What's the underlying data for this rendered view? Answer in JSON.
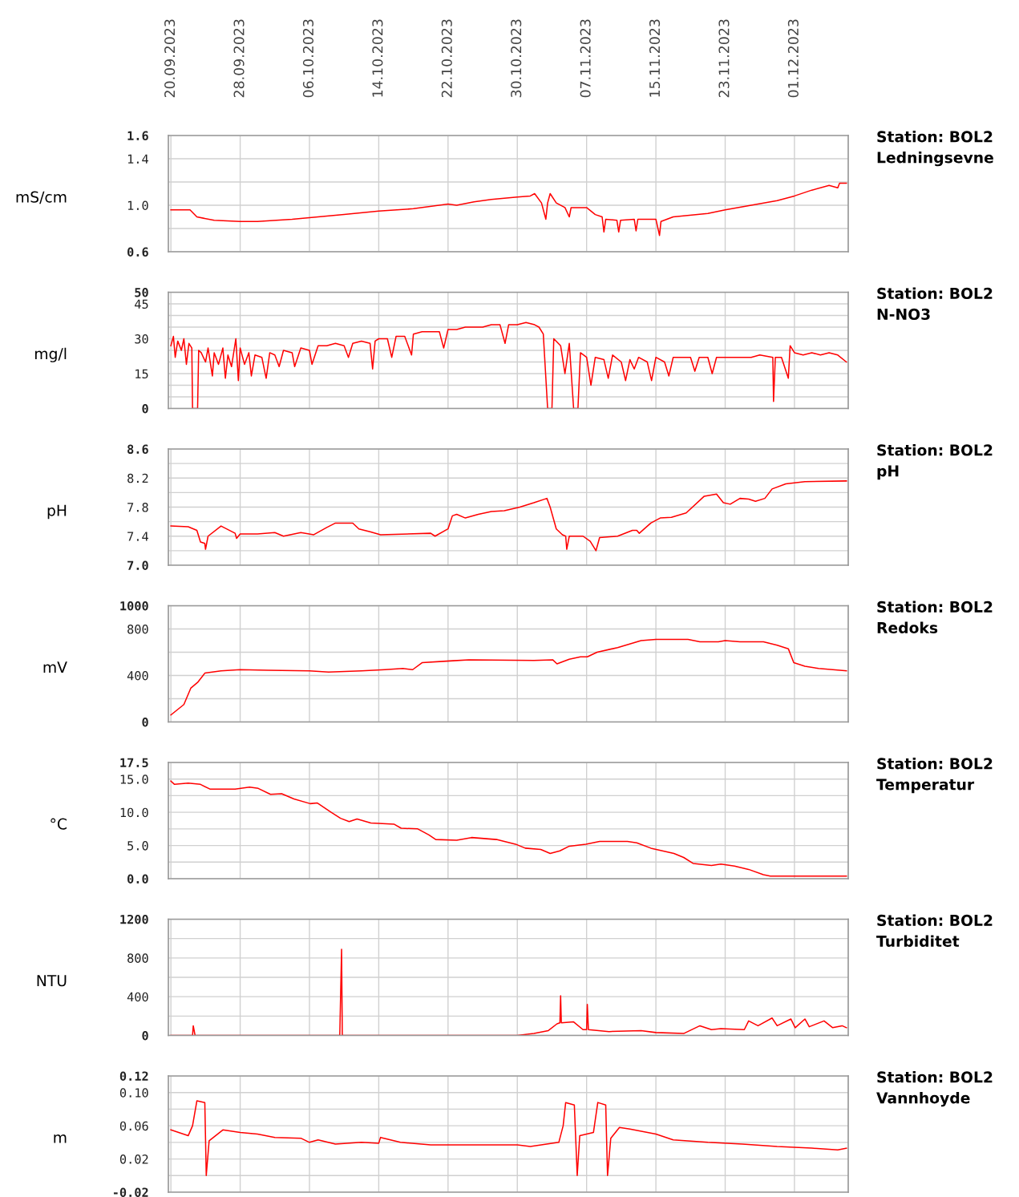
{
  "chart_data": [
    {
      "type": "line",
      "annotations": [
        "Station: BOL2",
        "Ledningsevne"
      ],
      "ylabel": "mS/cm",
      "grid": true,
      "x": [
        "2023-09-20",
        "2023-09-22T05:00",
        "2023-09-23",
        "2023-09-25",
        "2023-09-28",
        "2023-09-30",
        "2023-10-04",
        "2023-10-07",
        "2023-10-10",
        "2023-10-14",
        "2023-10-18",
        "2023-10-22",
        "2023-10-23",
        "2023-10-25",
        "2023-10-27",
        "2023-10-30",
        "2023-10-31T12:00",
        "2023-11-01",
        "2023-11-01T19:00",
        "2023-11-02T07:00",
        "2023-11-02T12:00",
        "2023-11-02T19:00",
        "2023-11-03T12:00",
        "2023-11-04T12:00",
        "2023-11-05",
        "2023-11-05T05:00",
        "2023-11-07",
        "2023-11-08",
        "2023-11-08T19:00",
        "2023-11-09",
        "2023-11-09T05:00",
        "2023-11-10T12:00",
        "2023-11-10T17:00",
        "2023-11-10T22:00",
        "2023-11-12T12:00",
        "2023-11-12T17:00",
        "2023-11-12T22:00",
        "2023-11-15",
        "2023-11-15T10:00",
        "2023-11-15T14:00",
        "2023-11-17",
        "2023-11-21",
        "2023-11-23",
        "2023-11-26",
        "2023-11-29",
        "2023-12-01",
        "2023-12-03",
        "2023-12-05",
        "2023-12-06",
        "2023-12-06T05:00",
        "2023-12-07"
      ],
      "series": [
        {
          "color": "#ff0000",
          "values": [
            0.96,
            0.96,
            0.9,
            0.87,
            0.86,
            0.86,
            0.88,
            0.9,
            0.92,
            0.95,
            0.97,
            1.01,
            1.0,
            1.03,
            1.05,
            1.07,
            1.08,
            1.1,
            1.02,
            0.88,
            1.02,
            1.1,
            1.02,
            0.98,
            0.9,
            0.98,
            0.98,
            0.92,
            0.9,
            0.77,
            0.88,
            0.87,
            0.77,
            0.87,
            0.88,
            0.78,
            0.88,
            0.88,
            0.74,
            0.86,
            0.9,
            0.93,
            0.96,
            1.0,
            1.04,
            1.08,
            1.13,
            1.17,
            1.15,
            1.19,
            1.19
          ]
        }
      ],
      "xlim": [
        "2023-09-19T17:00",
        "2023-12-07T05:00"
      ],
      "xticks": [
        {
          "value": "2023-09-20",
          "label": "20.09.2023"
        },
        {
          "value": "2023-09-28",
          "label": "28.09.2023"
        },
        {
          "value": "2023-10-06",
          "label": "06.10.2023"
        },
        {
          "value": "2023-10-14",
          "label": "14.10.2023"
        },
        {
          "value": "2023-10-22",
          "label": "22.10.2023"
        },
        {
          "value": "2023-10-30",
          "label": "30.10.2023"
        },
        {
          "value": "2023-11-07",
          "label": "07.11.2023"
        },
        {
          "value": "2023-11-15",
          "label": "15.11.2023"
        },
        {
          "value": "2023-11-23",
          "label": "23.11.2023"
        },
        {
          "value": "2023-12-01",
          "label": "01.12.2023"
        }
      ],
      "ylim": [
        0.6,
        1.6
      ],
      "yticks": [
        {
          "value": 0.6,
          "label": "0.6"
        },
        {
          "value": 0.8,
          "label": null
        },
        {
          "value": 1.0,
          "label": "1.0"
        },
        {
          "value": 1.2,
          "label": null
        },
        {
          "value": 1.4,
          "label": "1.4"
        },
        {
          "value": 1.6,
          "label": "1.6"
        }
      ]
    },
    {
      "type": "line",
      "annotations": [
        "Station: BOL2",
        "N-NO3"
      ],
      "ylabel": "mg/l",
      "grid": true,
      "tick_labels": "y",
      "x": [
        "2023-09-20",
        "2023-09-20T07:00",
        "2023-09-20T12:00",
        "2023-09-20T19:00",
        "2023-09-21T05:00",
        "2023-09-21T12:00",
        "2023-09-21T19:00",
        "2023-09-22T02:00",
        "2023-09-22T10:00",
        "2023-09-22T12:00",
        "2023-09-23T02:00",
        "2023-09-23T05:00",
        "2023-09-23T12:00",
        "2023-09-24",
        "2023-09-24T07:00",
        "2023-09-24T19:00",
        "2023-09-25",
        "2023-09-25T12:00",
        "2023-09-26",
        "2023-09-26T07:00",
        "2023-09-26T14:00",
        "2023-09-27",
        "2023-09-27T12:00",
        "2023-09-27T19:00",
        "2023-09-28",
        "2023-09-28T12:00",
        "2023-09-29",
        "2023-09-29T07:00",
        "2023-09-29T17:00",
        "2023-09-30T12:00",
        "2023-10-01",
        "2023-10-01T10:00",
        "2023-10-02",
        "2023-10-02T12:00",
        "2023-10-03",
        "2023-10-04",
        "2023-10-04T07:00",
        "2023-10-05",
        "2023-10-06",
        "2023-10-06T07:00",
        "2023-10-07",
        "2023-10-08",
        "2023-10-09",
        "2023-10-10",
        "2023-10-10T12:00",
        "2023-10-11",
        "2023-10-12",
        "2023-10-13",
        "2023-10-13T07:00",
        "2023-10-13T14:00",
        "2023-10-14",
        "2023-10-15",
        "2023-10-15T12:00",
        "2023-10-16",
        "2023-10-17",
        "2023-10-17T19:00",
        "2023-10-18",
        "2023-10-19",
        "2023-10-20",
        "2023-10-21",
        "2023-10-21T12:00",
        "2023-10-22",
        "2023-10-23",
        "2023-10-24",
        "2023-10-25",
        "2023-10-26",
        "2023-10-27",
        "2023-10-28",
        "2023-10-28T14:00",
        "2023-10-29",
        "2023-10-30",
        "2023-10-31",
        "2023-11-01",
        "2023-11-01T12:00",
        "2023-11-02",
        "2023-11-02T12:00",
        "2023-11-03",
        "2023-11-03T05:00",
        "2023-11-04",
        "2023-11-04T12:00",
        "2023-11-05",
        "2023-11-05T12:00",
        "2023-11-06",
        "2023-11-06T07:00",
        "2023-11-07",
        "2023-11-07T12:00",
        "2023-11-08",
        "2023-11-09",
        "2023-11-09T12:00",
        "2023-11-10",
        "2023-11-11",
        "2023-11-11T12:00",
        "2023-11-12",
        "2023-11-12T12:00",
        "2023-11-13",
        "2023-11-14",
        "2023-11-14T12:00",
        "2023-11-15",
        "2023-11-16",
        "2023-11-16T12:00",
        "2023-11-17",
        "2023-11-18",
        "2023-11-19",
        "2023-11-19T12:00",
        "2023-11-20",
        "2023-11-21",
        "2023-11-21T12:00",
        "2023-11-22",
        "2023-11-23",
        "2023-11-24",
        "2023-11-25",
        "2023-11-26",
        "2023-11-27",
        "2023-11-28T12:00",
        "2023-11-28T14:00",
        "2023-11-28T19:00",
        "2023-11-29T12:00",
        "2023-11-30T07:00",
        "2023-11-30T12:00",
        "2023-12-01",
        "2023-12-02",
        "2023-12-03",
        "2023-12-04",
        "2023-12-05",
        "2023-12-06",
        "2023-12-07"
      ],
      "series": [
        {
          "color": "#ff0000",
          "values": [
            27,
            31,
            22,
            29,
            25,
            30,
            19,
            28,
            26,
            0,
            0,
            25,
            24,
            20,
            26,
            14,
            24,
            19,
            26,
            13,
            23,
            18,
            30,
            12,
            26,
            19,
            24,
            14,
            23,
            22,
            13,
            24,
            23,
            18,
            25,
            24,
            18,
            26,
            25,
            19,
            27,
            27,
            28,
            27,
            22,
            28,
            29,
            28,
            17,
            29,
            30,
            30,
            22,
            31,
            31,
            23,
            32,
            33,
            33,
            33,
            26,
            34,
            34,
            35,
            35,
            35,
            36,
            36,
            28,
            36,
            36,
            37,
            36,
            35,
            32,
            0,
            0,
            30,
            27,
            15,
            28,
            0,
            0,
            24,
            22,
            10,
            22,
            21,
            13,
            23,
            20,
            12,
            21,
            17,
            22,
            20,
            12,
            22,
            20,
            14,
            22,
            22,
            22,
            16,
            22,
            22,
            15,
            22,
            22,
            22,
            22,
            22,
            23,
            22,
            3,
            22,
            22,
            13,
            27,
            24,
            23,
            24,
            23,
            24,
            23,
            20
          ]
        }
      ],
      "xlim": [
        "2023-09-19T17:00",
        "2023-12-07T05:00"
      ],
      "xticks": [
        {
          "value": "2023-09-20",
          "label": null
        },
        {
          "value": "2023-09-28",
          "label": null
        },
        {
          "value": "2023-10-06",
          "label": null
        },
        {
          "value": "2023-10-14",
          "label": null
        },
        {
          "value": "2023-10-22",
          "label": null
        },
        {
          "value": "2023-10-30",
          "label": null
        },
        {
          "value": "2023-11-07",
          "label": null
        },
        {
          "value": "2023-11-15",
          "label": null
        },
        {
          "value": "2023-11-23",
          "label": null
        },
        {
          "value": "2023-12-01",
          "label": null
        }
      ],
      "ylim": [
        0,
        50
      ],
      "yticks": [
        0,
        {
          "value": 5,
          "label": null
        },
        {
          "value": 10,
          "label": null
        },
        15,
        {
          "value": 20,
          "label": null
        },
        {
          "value": 25,
          "label": null
        },
        30,
        {
          "value": 35,
          "label": null
        },
        {
          "value": 40,
          "label": null
        },
        45,
        50
      ]
    },
    {
      "type": "line",
      "annotations": [
        "Station: BOL2",
        "pH"
      ],
      "ylabel": "pH",
      "grid": true,
      "tick_labels": "y",
      "x": [
        "2023-09-20",
        "2023-09-22",
        "2023-09-23",
        "2023-09-23T10:00",
        "2023-09-23T22:00",
        "2023-09-24",
        "2023-09-24T07:00",
        "2023-09-25T19:00",
        "2023-09-27T10:00",
        "2023-09-27T14:00",
        "2023-09-28",
        "2023-09-30",
        "2023-10-02",
        "2023-10-03",
        "2023-10-05",
        "2023-10-06T12:00",
        "2023-10-08",
        "2023-10-09",
        "2023-10-11",
        "2023-10-11T17:00",
        "2023-10-13",
        "2023-10-14T05:00",
        "2023-10-20",
        "2023-10-20T12:00",
        "2023-10-22",
        "2023-10-22T12:00",
        "2023-10-23",
        "2023-10-24",
        "2023-10-25T12:00",
        "2023-10-27",
        "2023-10-28T12:00",
        "2023-10-30T07:00",
        "2023-10-31T22:00",
        "2023-11-02T10:00",
        "2023-11-02T19:00",
        "2023-11-03T12:00",
        "2023-11-04T05:00",
        "2023-11-04T14:00",
        "2023-11-04T17:00",
        "2023-11-05",
        "2023-11-06T14:00",
        "2023-11-07T10:00",
        "2023-11-08T02:00",
        "2023-11-08T12:00",
        "2023-11-10T14:00",
        "2023-11-12T07:00",
        "2023-11-12T19:00",
        "2023-11-13T02:00",
        "2023-11-14T10:00",
        "2023-11-15T12:00",
        "2023-11-16T19:00",
        "2023-11-18T12:00",
        "2023-11-20T14:00",
        "2023-11-22",
        "2023-11-22T19:00",
        "2023-11-23T14:00",
        "2023-11-24T17:00",
        "2023-11-25T17:00",
        "2023-11-26T12:00",
        "2023-11-27T14:00",
        "2023-11-28T10:00",
        "2023-11-30",
        "2023-12-02T05:00",
        "2023-12-07"
      ],
      "series": [
        {
          "color": "#ff0000",
          "values": [
            7.54,
            7.53,
            7.48,
            7.32,
            7.3,
            7.22,
            7.4,
            7.54,
            7.44,
            7.37,
            7.43,
            7.43,
            7.45,
            7.4,
            7.45,
            7.42,
            7.52,
            7.58,
            7.58,
            7.5,
            7.46,
            7.42,
            7.44,
            7.4,
            7.5,
            7.68,
            7.7,
            7.65,
            7.7,
            7.74,
            7.75,
            7.8,
            7.86,
            7.92,
            7.8,
            7.5,
            7.42,
            7.4,
            7.22,
            7.4,
            7.4,
            7.33,
            7.2,
            7.38,
            7.4,
            7.48,
            7.48,
            7.44,
            7.58,
            7.65,
            7.66,
            7.72,
            7.95,
            7.98,
            7.86,
            7.84,
            7.92,
            7.91,
            7.88,
            7.92,
            8.05,
            8.12,
            8.15,
            8.16
          ]
        }
      ],
      "xlim": [
        "2023-09-19T17:00",
        "2023-12-07T05:00"
      ],
      "xticks": [
        {
          "value": "2023-09-20",
          "label": null
        },
        {
          "value": "2023-09-28",
          "label": null
        },
        {
          "value": "2023-10-06",
          "label": null
        },
        {
          "value": "2023-10-14",
          "label": null
        },
        {
          "value": "2023-10-22",
          "label": null
        },
        {
          "value": "2023-10-30",
          "label": null
        },
        {
          "value": "2023-11-07",
          "label": null
        },
        {
          "value": "2023-11-15",
          "label": null
        },
        {
          "value": "2023-11-23",
          "label": null
        },
        {
          "value": "2023-12-01",
          "label": null
        }
      ],
      "ylim": [
        7.0,
        8.6
      ],
      "yticks": [
        {
          "value": 7.0,
          "label": "7.0"
        },
        {
          "value": 7.2,
          "label": null
        },
        {
          "value": 7.4,
          "label": "7.4"
        },
        {
          "value": 7.6,
          "label": null
        },
        {
          "value": 7.8,
          "label": "7.8"
        },
        {
          "value": 8.0,
          "label": null
        },
        {
          "value": 8.2,
          "label": "8.2"
        },
        {
          "value": 8.4,
          "label": null
        },
        {
          "value": 8.6,
          "label": "8.6"
        }
      ]
    },
    {
      "type": "line",
      "annotations": [
        "Station: BOL2",
        "Redoks"
      ],
      "ylabel": "mV",
      "grid": true,
      "tick_labels": "y",
      "x": [
        "2023-09-20",
        "2023-09-21T12:00",
        "2023-09-22T07:00",
        "2023-09-23T02:00",
        "2023-09-23T22:00",
        "2023-09-25T19:00",
        "2023-09-28",
        "2023-10-01T05:00",
        "2023-10-06",
        "2023-10-08T05:00",
        "2023-10-12",
        "2023-10-14T17:00",
        "2023-10-16T19:00",
        "2023-10-17T22:00",
        "2023-10-19",
        "2023-10-22T05:00",
        "2023-10-24T10:00",
        "2023-10-31T22:00",
        "2023-11-03T02:00",
        "2023-11-03T14:00",
        "2023-11-05",
        "2023-11-06T07:00",
        "2023-11-07T02:00",
        "2023-11-08T05:00",
        "2023-11-10T14:00",
        "2023-11-13T07:00",
        "2023-11-15",
        "2023-11-18T17:00",
        "2023-11-20T02:00",
        "2023-11-22T05:00",
        "2023-11-23",
        "2023-11-24T17:00",
        "2023-11-27T10:00",
        "2023-11-29",
        "2023-11-30T07:00",
        "2023-11-30T22:00",
        "2023-12-02T05:00",
        "2023-12-03T19:00",
        "2023-12-07"
      ],
      "series": [
        {
          "color": "#ff0000",
          "values": [
            60,
            150,
            290,
            340,
            420,
            440,
            450,
            445,
            440,
            430,
            440,
            450,
            460,
            450,
            510,
            525,
            535,
            530,
            535,
            500,
            540,
            560,
            560,
            600,
            640,
            700,
            710,
            710,
            690,
            690,
            700,
            690,
            690,
            660,
            630,
            510,
            480,
            460,
            440
          ]
        }
      ],
      "xlim": [
        "2023-09-19T17:00",
        "2023-12-07T05:00"
      ],
      "xticks": [
        {
          "value": "2023-09-20",
          "label": null
        },
        {
          "value": "2023-09-28",
          "label": null
        },
        {
          "value": "2023-10-06",
          "label": null
        },
        {
          "value": "2023-10-14",
          "label": null
        },
        {
          "value": "2023-10-22",
          "label": null
        },
        {
          "value": "2023-10-30",
          "label": null
        },
        {
          "value": "2023-11-07",
          "label": null
        },
        {
          "value": "2023-11-15",
          "label": null
        },
        {
          "value": "2023-11-23",
          "label": null
        },
        {
          "value": "2023-12-01",
          "label": null
        }
      ],
      "ylim": [
        0,
        1000
      ],
      "yticks": [
        0,
        {
          "value": 200,
          "label": null
        },
        400,
        {
          "value": 600,
          "label": null
        },
        800,
        1000
      ]
    },
    {
      "type": "line",
      "annotations": [
        "Station: BOL2",
        "Temperatur"
      ],
      "ylabel": "°C",
      "grid": true,
      "tick_labels": "y",
      "x": [
        "2023-09-20",
        "2023-09-20T10:00",
        "2023-09-22",
        "2023-09-23T10:00",
        "2023-09-24T12:00",
        "2023-09-27T10:00",
        "2023-09-29T02:00",
        "2023-09-30T02:00",
        "2023-10-01T12:00",
        "2023-10-02T19:00",
        "2023-10-04T05:00",
        "2023-10-06T02:00",
        "2023-10-06T22:00",
        "2023-10-08T12:00",
        "2023-10-09T14:00",
        "2023-10-10T14:00",
        "2023-10-11T12:00",
        "2023-10-13T02:00",
        "2023-10-15T19:00",
        "2023-10-16T14:00",
        "2023-10-18T12:00",
        "2023-10-19T19:00",
        "2023-10-20T14:00",
        "2023-10-23",
        "2023-10-24T17:00",
        "2023-10-27T14:00",
        "2023-10-29T19:00",
        "2023-10-30T22:00",
        "2023-11-01T17:00",
        "2023-11-02T19:00",
        "2023-11-03T22:00",
        "2023-11-05",
        "2023-11-06T22:00",
        "2023-11-08T12:00",
        "2023-11-11T17:00",
        "2023-11-12T19:00",
        "2023-11-14T10:00",
        "2023-11-17T02:00",
        "2023-11-18T05:00",
        "2023-11-19T07:00",
        "2023-11-21T10:00",
        "2023-11-22T12:00",
        "2023-11-24T02:00",
        "2023-11-25T17:00",
        "2023-11-27T10:00",
        "2023-11-28T05:00",
        "2023-12-07"
      ],
      "series": [
        {
          "color": "#ff0000",
          "values": [
            14.7,
            14.2,
            14.4,
            14.2,
            13.5,
            13.5,
            13.8,
            13.6,
            12.7,
            12.8,
            12.0,
            11.3,
            11.4,
            10.0,
            9.1,
            8.6,
            9.0,
            8.4,
            8.2,
            7.6,
            7.5,
            6.6,
            5.9,
            5.8,
            6.2,
            5.9,
            5.2,
            4.6,
            4.4,
            3.8,
            4.2,
            4.9,
            5.2,
            5.6,
            5.6,
            5.4,
            4.6,
            3.8,
            3.2,
            2.3,
            2.0,
            2.2,
            1.9,
            1.4,
            0.6,
            0.4,
            0.4
          ]
        }
      ],
      "xlim": [
        "2023-09-19T17:00",
        "2023-12-07T05:00"
      ],
      "xticks": [
        {
          "value": "2023-09-20",
          "label": null
        },
        {
          "value": "2023-09-28",
          "label": null
        },
        {
          "value": "2023-10-06",
          "label": null
        },
        {
          "value": "2023-10-14",
          "label": null
        },
        {
          "value": "2023-10-22",
          "label": null
        },
        {
          "value": "2023-10-30",
          "label": null
        },
        {
          "value": "2023-11-07",
          "label": null
        },
        {
          "value": "2023-11-15",
          "label": null
        },
        {
          "value": "2023-11-23",
          "label": null
        },
        {
          "value": "2023-12-01",
          "label": null
        }
      ],
      "ylim": [
        0,
        17.5
      ],
      "yticks": [
        {
          "value": 0,
          "label": "0.0"
        },
        {
          "value": 2.5,
          "label": null
        },
        {
          "value": 5,
          "label": "5.0"
        },
        {
          "value": 7.5,
          "label": null
        },
        {
          "value": 10,
          "label": "10.0"
        },
        {
          "value": 12.5,
          "label": null
        },
        {
          "value": 15,
          "label": "15.0"
        },
        {
          "value": 17.5,
          "label": "17.5"
        }
      ]
    },
    {
      "type": "line",
      "annotations": [
        "Station: BOL2",
        "Turbiditet"
      ],
      "ylabel": "NTU",
      "grid": true,
      "tick_labels": "y",
      "x": [
        "2023-09-20",
        "2023-09-22T12:00",
        "2023-09-22T14:00",
        "2023-09-22T19:00",
        "2023-10-09T12:00",
        "2023-10-09T17:00",
        "2023-10-09T19:00",
        "2023-10-30",
        "2023-10-31T22:00",
        "2023-11-02T14:00",
        "2023-11-03T14:00",
        "2023-11-03T22:00",
        "2023-11-04",
        "2023-11-04T02:00",
        "2023-11-05T12:00",
        "2023-11-06T14:00",
        "2023-11-07",
        "2023-11-07T02:00",
        "2023-11-07T05:00",
        "2023-11-09T14:00",
        "2023-11-13T07:00",
        "2023-11-15",
        "2023-11-18T05:00",
        "2023-11-20T02:00",
        "2023-11-21T10:00",
        "2023-11-22T12:00",
        "2023-11-25T05:00",
        "2023-11-25T17:00",
        "2023-11-26T19:00",
        "2023-11-28T10:00",
        "2023-11-29",
        "2023-11-30T14:00",
        "2023-12-01T02:00",
        "2023-12-02T05:00",
        "2023-12-02T17:00",
        "2023-12-04T10:00",
        "2023-12-05T10:00",
        "2023-12-06T12:00",
        "2023-12-07"
      ],
      "series": [
        {
          "color": "#ff0000",
          "values": [
            0,
            0,
            100,
            0,
            0,
            890,
            0,
            0,
            20,
            50,
            120,
            130,
            410,
            130,
            140,
            60,
            60,
            320,
            60,
            40,
            50,
            30,
            20,
            100,
            60,
            70,
            60,
            150,
            100,
            180,
            100,
            170,
            80,
            170,
            90,
            150,
            80,
            100,
            80
          ]
        }
      ],
      "xlim": [
        "2023-09-19T17:00",
        "2023-12-07T05:00"
      ],
      "xticks": [
        {
          "value": "2023-09-20",
          "label": null
        },
        {
          "value": "2023-09-28",
          "label": null
        },
        {
          "value": "2023-10-06",
          "label": null
        },
        {
          "value": "2023-10-14",
          "label": null
        },
        {
          "value": "2023-10-22",
          "label": null
        },
        {
          "value": "2023-10-30",
          "label": null
        },
        {
          "value": "2023-11-07",
          "label": null
        },
        {
          "value": "2023-11-15",
          "label": null
        },
        {
          "value": "2023-11-23",
          "label": null
        },
        {
          "value": "2023-12-01",
          "label": null
        }
      ],
      "ylim": [
        0,
        1200
      ],
      "yticks": [
        0,
        {
          "value": 200,
          "label": null
        },
        400,
        {
          "value": 600,
          "label": null
        },
        800,
        {
          "value": 1000,
          "label": null
        },
        1200
      ]
    },
    {
      "type": "line",
      "annotations": [
        "Station: BOL2",
        "Vannhoyde"
      ],
      "ylabel": "m",
      "grid": true,
      "tick_labels": "y",
      "x": [
        "2023-09-20",
        "2023-09-22",
        "2023-09-22T12:00",
        "2023-09-23",
        "2023-09-23T22:00",
        "2023-09-24T02:00",
        "2023-09-24T10:00",
        "2023-09-26",
        "2023-09-28",
        "2023-09-30",
        "2023-10-02",
        "2023-10-05",
        "2023-10-06",
        "2023-10-07",
        "2023-10-09",
        "2023-10-12",
        "2023-10-14",
        "2023-10-14T05:00",
        "2023-10-16T12:00",
        "2023-10-20",
        "2023-10-30",
        "2023-10-31T12:00",
        "2023-11-03T19:00",
        "2023-11-04T07:00",
        "2023-11-04T14:00",
        "2023-11-05T14:00",
        "2023-11-05T22:00",
        "2023-11-06T05:00",
        "2023-11-07T19:00",
        "2023-11-08T07:00",
        "2023-11-09T05:00",
        "2023-11-09T10:00",
        "2023-11-09T19:00",
        "2023-11-10T19:00",
        "2023-11-12",
        "2023-11-15",
        "2023-11-17",
        "2023-11-21",
        "2023-11-25",
        "2023-11-29",
        "2023-12-03",
        "2023-12-06",
        "2023-12-07"
      ],
      "series": [
        {
          "color": "#ff0000",
          "values": [
            0.055,
            0.048,
            0.06,
            0.09,
            0.088,
            0.0,
            0.042,
            0.055,
            0.052,
            0.05,
            0.046,
            0.045,
            0.04,
            0.043,
            0.038,
            0.04,
            0.039,
            0.046,
            0.04,
            0.037,
            0.037,
            0.035,
            0.04,
            0.06,
            0.088,
            0.085,
            0.0,
            0.048,
            0.052,
            0.088,
            0.085,
            0.0,
            0.045,
            0.058,
            0.056,
            0.05,
            0.043,
            0.04,
            0.038,
            0.035,
            0.033,
            0.031,
            0.033
          ]
        }
      ],
      "xlim": [
        "2023-09-19T17:00",
        "2023-12-07T05:00"
      ],
      "xticks": [
        {
          "value": "2023-09-20",
          "label": null
        },
        {
          "value": "2023-09-28",
          "label": null
        },
        {
          "value": "2023-10-06",
          "label": null
        },
        {
          "value": "2023-10-14",
          "label": null
        },
        {
          "value": "2023-10-22",
          "label": null
        },
        {
          "value": "2023-10-30",
          "label": null
        },
        {
          "value": "2023-11-07",
          "label": null
        },
        {
          "value": "2023-11-15",
          "label": null
        },
        {
          "value": "2023-11-23",
          "label": null
        },
        {
          "value": "2023-12-01",
          "label": null
        }
      ],
      "ylim": [
        -0.02,
        0.12
      ],
      "yticks": [
        {
          "value": -0.02,
          "label": "-0.02"
        },
        {
          "value": 0,
          "label": null
        },
        {
          "value": 0.02,
          "label": "0.02"
        },
        {
          "value": 0.04,
          "label": null
        },
        {
          "value": 0.06,
          "label": "0.06"
        },
        {
          "value": 0.08,
          "label": null
        },
        {
          "value": 0.1,
          "label": "0.10"
        },
        {
          "value": 0.12,
          "label": "0.12"
        }
      ]
    }
  ]
}
